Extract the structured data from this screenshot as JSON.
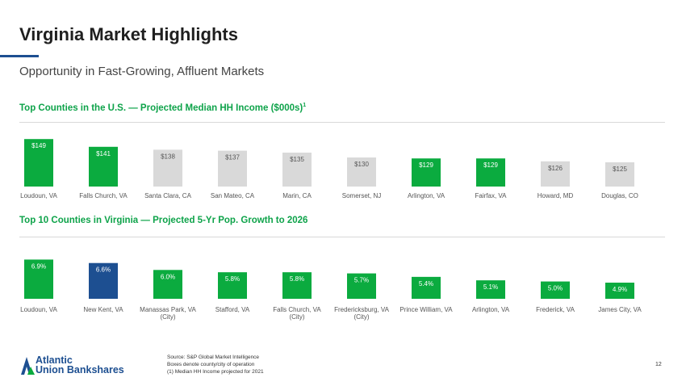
{
  "header": {
    "title": "Virginia Market Highlights",
    "subtitle": "Opportunity in Fast-Growing, Affluent Markets"
  },
  "colors": {
    "green": "#0bab3f",
    "gray": "#d9d9d9",
    "navy": "#1d4f91",
    "section_title": "#0ea34a"
  },
  "chart_data": [
    {
      "type": "bar",
      "title": "Top Counties in the U.S. — Projected Median HH Income ($000s)",
      "title_footnote": "1",
      "categories": [
        "Loudoun, VA",
        "Falls Church, VA",
        "Santa Clara, CA",
        "San Mateo, CA",
        "Marin, CA",
        "Somerset, NJ",
        "Arlington, VA",
        "Fairfax, VA",
        "Howard, MD",
        "Douglas, CO"
      ],
      "values": [
        149,
        141,
        138,
        137,
        135,
        130,
        129,
        129,
        126,
        125
      ],
      "labels": [
        "$149",
        "$141",
        "$138",
        "$137",
        "$135",
        "$130",
        "$129",
        "$129",
        "$126",
        "$125"
      ],
      "bar_colors": [
        "green",
        "green",
        "gray",
        "gray",
        "gray",
        "gray",
        "green",
        "green",
        "gray",
        "gray"
      ],
      "ylim": [
        100,
        150
      ]
    },
    {
      "type": "bar",
      "title": "Top 10 Counties in Virginia — Projected 5-Yr Pop. Growth to 2026",
      "categories": [
        "Loudoun, VA",
        "New Kent, VA",
        "Manassas Park, VA\n(City)",
        "Stafford, VA",
        "Falls Church, VA\n(City)",
        "Fredericksburg, VA\n(City)",
        "Prince William, VA",
        "Arlington, VA",
        "Frederick, VA",
        "James City, VA"
      ],
      "values": [
        6.9,
        6.6,
        6.0,
        5.8,
        5.8,
        5.7,
        5.4,
        5.1,
        5.0,
        4.9
      ],
      "labels": [
        "6.9%",
        "6.6%",
        "6.0%",
        "5.8%",
        "5.8%",
        "5.7%",
        "5.4%",
        "5.1%",
        "5.0%",
        "4.9%"
      ],
      "bar_colors": [
        "green",
        "navy",
        "green",
        "green",
        "green",
        "green",
        "green",
        "green",
        "green",
        "green"
      ],
      "ylim": [
        3.5,
        7.0
      ]
    }
  ],
  "logo": {
    "line1": "Atlantic",
    "line2": "Union Bankshares"
  },
  "footnotes": [
    "Source: S&P Global Market Intelligence",
    "Boxes denote county/city of operation",
    "(1) Median HH Income  projected for 2021"
  ],
  "page_number": "12"
}
